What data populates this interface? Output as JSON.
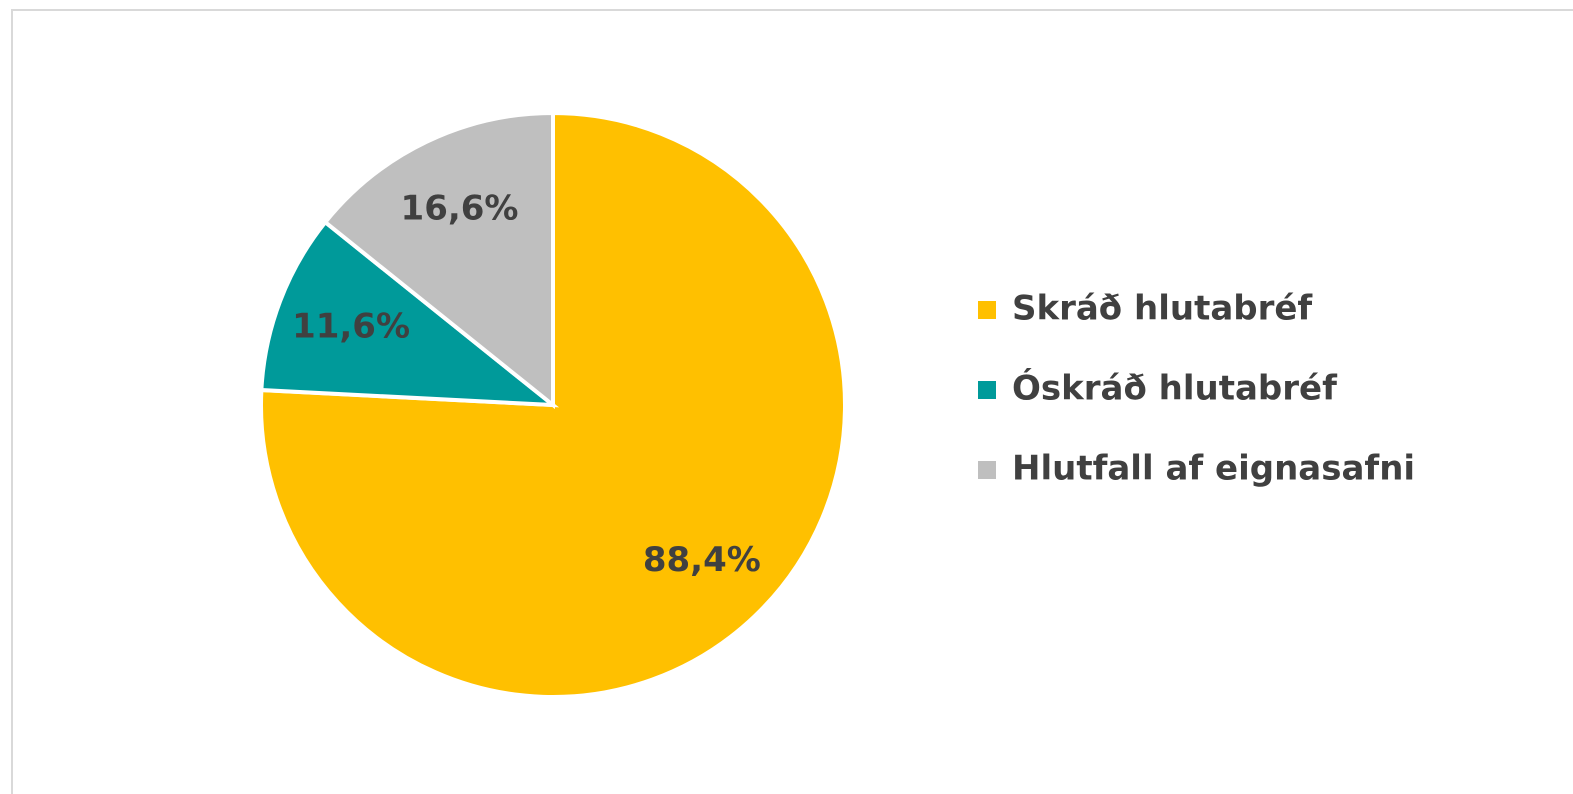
{
  "chart_data": {
    "type": "pie",
    "categories": [
      "Skráð hlutabréf",
      "Óskráð hlutabréf",
      "Hlutfall af eignasafni"
    ],
    "values": [
      88.4,
      11.6,
      16.6
    ],
    "value_labels": [
      "88,4%",
      "11,6%",
      "16,6%"
    ],
    "colors": [
      "#ffc000",
      "#009a9a",
      "#bfbfbf"
    ],
    "legend": "right"
  }
}
